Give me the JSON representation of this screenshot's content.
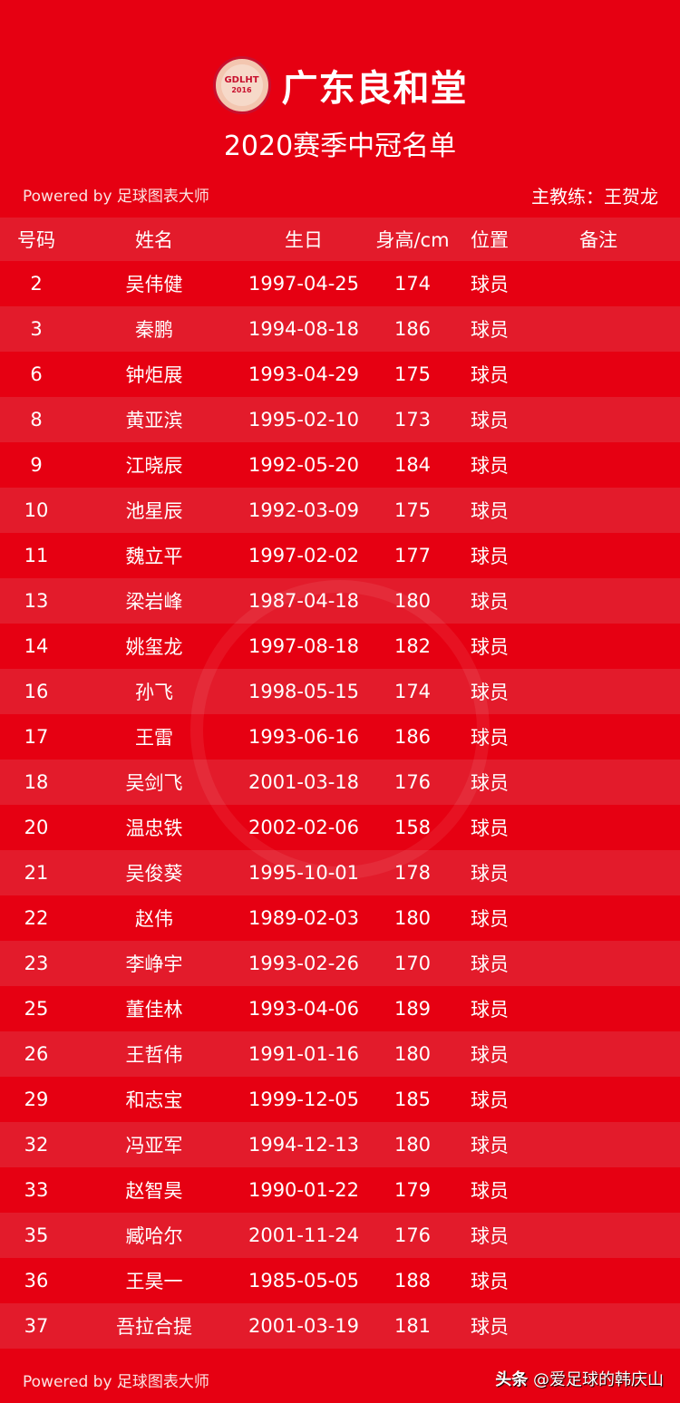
{
  "header": {
    "brand": "广东良和堂",
    "logo_text": "GDLHT",
    "logo_year": "2016",
    "subtitle": "2020赛季中冠名单",
    "powered": "Powered by 足球图表大师",
    "coach": "主教练：王贺龙"
  },
  "table": {
    "columns": [
      "号码",
      "姓名",
      "生日",
      "身高/cm",
      "位置",
      "备注"
    ],
    "rows": [
      [
        "2",
        "吴伟健",
        "1997-04-25",
        "174",
        "球员",
        ""
      ],
      [
        "3",
        "秦鹏",
        "1994-08-18",
        "186",
        "球员",
        ""
      ],
      [
        "6",
        "钟炬展",
        "1993-04-29",
        "175",
        "球员",
        ""
      ],
      [
        "8",
        "黄亚滨",
        "1995-02-10",
        "173",
        "球员",
        ""
      ],
      [
        "9",
        "江晓辰",
        "1992-05-20",
        "184",
        "球员",
        ""
      ],
      [
        "10",
        "池星辰",
        "1992-03-09",
        "175",
        "球员",
        ""
      ],
      [
        "11",
        "魏立平",
        "1997-02-02",
        "177",
        "球员",
        ""
      ],
      [
        "13",
        "梁岩峰",
        "1987-04-18",
        "180",
        "球员",
        ""
      ],
      [
        "14",
        "姚玺龙",
        "1997-08-18",
        "182",
        "球员",
        ""
      ],
      [
        "16",
        "孙飞",
        "1998-05-15",
        "174",
        "球员",
        ""
      ],
      [
        "17",
        "王雷",
        "1993-06-16",
        "186",
        "球员",
        ""
      ],
      [
        "18",
        "吴剑飞",
        "2001-03-18",
        "176",
        "球员",
        ""
      ],
      [
        "20",
        "温忠铁",
        "2002-02-06",
        "158",
        "球员",
        ""
      ],
      [
        "21",
        "吴俊葵",
        "1995-10-01",
        "178",
        "球员",
        ""
      ],
      [
        "22",
        "赵伟",
        "1989-02-03",
        "180",
        "球员",
        ""
      ],
      [
        "23",
        "李峥宇",
        "1993-02-26",
        "170",
        "球员",
        ""
      ],
      [
        "25",
        "董佳林",
        "1993-04-06",
        "189",
        "球员",
        ""
      ],
      [
        "26",
        "王哲伟",
        "1991-01-16",
        "180",
        "球员",
        ""
      ],
      [
        "29",
        "和志宝",
        "1999-12-05",
        "185",
        "球员",
        ""
      ],
      [
        "32",
        "冯亚军",
        "1994-12-13",
        "180",
        "球员",
        ""
      ],
      [
        "33",
        "赵智昊",
        "1990-01-22",
        "179",
        "球员",
        ""
      ],
      [
        "35",
        "臧哈尔",
        "2001-11-24",
        "176",
        "球员",
        ""
      ],
      [
        "36",
        "王昊一",
        "1985-05-05",
        "188",
        "球员",
        ""
      ],
      [
        "37",
        "吾拉合提",
        "2001-03-19",
        "181",
        "球员",
        ""
      ]
    ]
  },
  "footer": {
    "powered": "Powered by 足球图表大师",
    "source_brand": "头条",
    "source_handle": "@爱足球的韩庆山"
  },
  "colors": {
    "background": "#e60012",
    "row_alt": "#e31b2b"
  }
}
